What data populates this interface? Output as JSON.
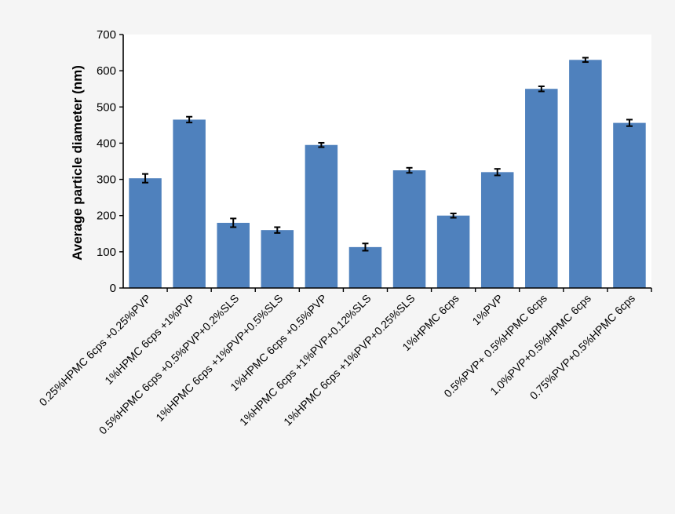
{
  "chart_data": {
    "type": "bar",
    "title": "",
    "xlabel": "",
    "ylabel": "Average particle diameter (nm)",
    "ylim": [
      0,
      700
    ],
    "yticks": [
      0,
      100,
      200,
      300,
      400,
      500,
      600,
      700
    ],
    "grid": false,
    "bar_color": "#4f81bd",
    "background_color": "#f5f5f5",
    "plot_background_color": "#ffffff",
    "categories": [
      "0.25%HPMC 6cps +0.25%PVP",
      "1%HPMC 6cps +1%PVP",
      "0.5%HPMC 6cps +0.5%PVP+0.2%SLS",
      "1%HPMC 6cps +1%PVP+0.5%SLS",
      "1%HPMC 6cps +0.5%PVP",
      "1%HPMC 6cps +1%PVP+0.12%SLS",
      "1%HPMC 6cps +1%PVP+0.25%SLS",
      "1%HPMC 6cps",
      "1%PVP",
      "0.5%PVP+ 0.5%HPMC 6cps",
      "1.0%PVP+0.5%HPMC 6cps",
      "0.75%PVP+0.5%HPMC 6cps"
    ],
    "values": [
      303,
      465,
      180,
      160,
      395,
      113,
      325,
      200,
      320,
      550,
      630,
      456
    ],
    "errors": [
      12,
      8,
      12,
      8,
      6,
      10,
      7,
      6,
      9,
      7,
      6,
      9
    ]
  }
}
